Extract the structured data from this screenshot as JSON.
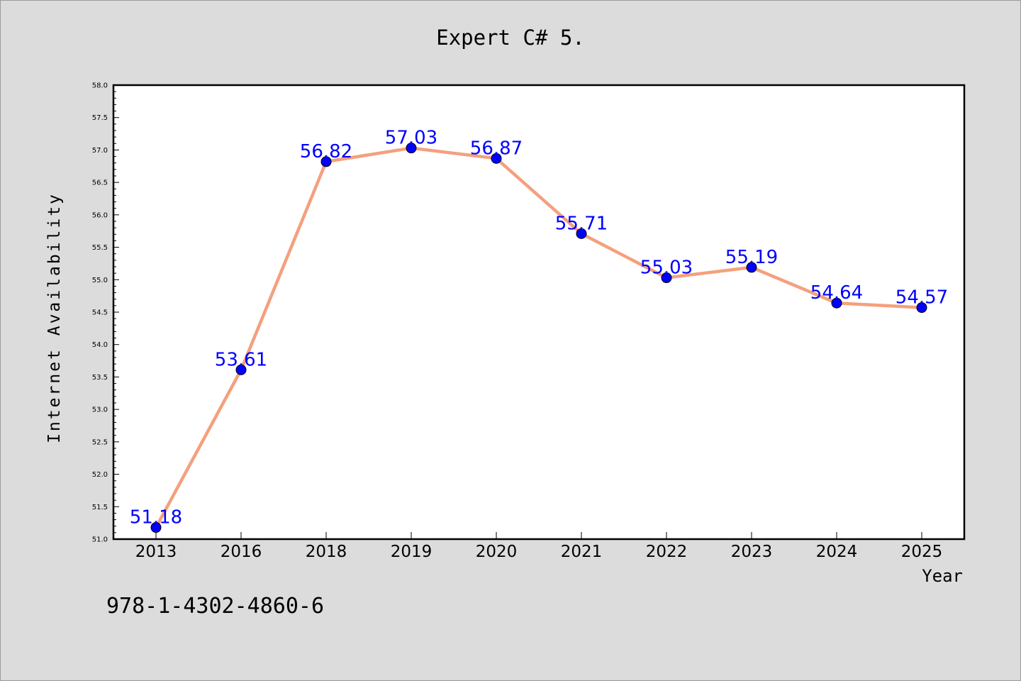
{
  "chart_data": {
    "type": "line",
    "title": "Expert C# 5.",
    "xlabel": "Year",
    "ylabel": "Internet Availability",
    "categories": [
      "2013",
      "2016",
      "2018",
      "2019",
      "2020",
      "2021",
      "2022",
      "2023",
      "2024",
      "2025"
    ],
    "series": [
      {
        "values": [
          51.18,
          53.61,
          56.82,
          57.03,
          56.87,
          55.71,
          55.03,
          55.19,
          54.64,
          54.57
        ],
        "data_labels": [
          "51.18",
          "53.61",
          "56.82",
          "57.03",
          "56.87",
          "55.71",
          "55.03",
          "55.19",
          "54.64",
          "54.57"
        ]
      }
    ],
    "ylim": [
      51.0,
      58.0
    ],
    "yticks": [
      "51.0",
      "51.5",
      "52.0",
      "52.5",
      "53.0",
      "53.5",
      "54.0",
      "54.5",
      "55.0",
      "55.5",
      "56.0",
      "56.5",
      "57.0",
      "57.5",
      "58.0"
    ],
    "grid": false,
    "legend": "none",
    "annotation": "978-1-4302-4860-6",
    "colors": {
      "line": "#f4a07e",
      "marker": "#0000ff",
      "data_label": "#0000ff",
      "background": "#dcdcdc",
      "plot_background": "#ffffff"
    }
  }
}
